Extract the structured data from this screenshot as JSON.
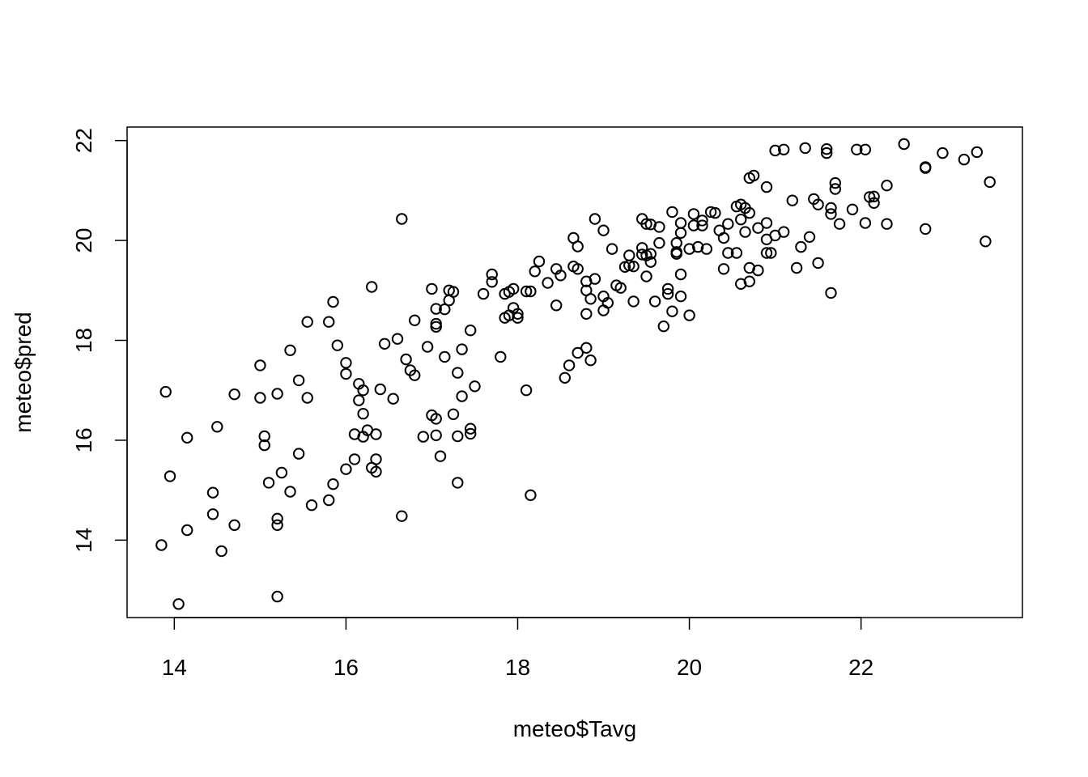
{
  "chart_data": {
    "type": "scatter",
    "title": "",
    "xlabel": "meteo$Tavg",
    "ylabel": "meteo$pred",
    "xlim": [
      13.45,
      23.88
    ],
    "ylim": [
      12.45,
      22.27
    ],
    "xticks": [
      14,
      16,
      18,
      20,
      22
    ],
    "yticks": [
      14,
      16,
      18,
      20,
      22
    ],
    "xtick_labels": [
      "14",
      "16",
      "18",
      "20",
      "22"
    ],
    "ytick_labels": [
      "14",
      "16",
      "18",
      "20",
      "22"
    ],
    "grid": false,
    "marker": "open-circle",
    "point_color": "#000000",
    "points": [
      [
        13.85,
        13.9
      ],
      [
        13.9,
        16.97
      ],
      [
        13.95,
        15.28
      ],
      [
        14.05,
        12.72
      ],
      [
        14.15,
        14.2
      ],
      [
        14.15,
        16.05
      ],
      [
        14.45,
        14.52
      ],
      [
        14.45,
        14.95
      ],
      [
        14.5,
        16.27
      ],
      [
        14.55,
        13.78
      ],
      [
        14.7,
        14.3
      ],
      [
        14.7,
        16.92
      ],
      [
        15.0,
        16.85
      ],
      [
        15.0,
        17.5
      ],
      [
        15.05,
        16.08
      ],
      [
        15.05,
        15.9
      ],
      [
        15.1,
        15.15
      ],
      [
        15.2,
        12.87
      ],
      [
        15.2,
        14.3
      ],
      [
        15.2,
        14.43
      ],
      [
        15.2,
        16.93
      ],
      [
        15.25,
        15.35
      ],
      [
        15.35,
        14.97
      ],
      [
        15.35,
        17.8
      ],
      [
        15.45,
        17.2
      ],
      [
        15.45,
        15.73
      ],
      [
        15.55,
        16.85
      ],
      [
        15.55,
        18.37
      ],
      [
        15.6,
        14.7
      ],
      [
        15.8,
        14.8
      ],
      [
        15.8,
        18.37
      ],
      [
        15.85,
        15.12
      ],
      [
        15.85,
        18.77
      ],
      [
        15.9,
        17.9
      ],
      [
        16.0,
        15.42
      ],
      [
        16.0,
        17.33
      ],
      [
        16.0,
        17.55
      ],
      [
        16.1,
        15.62
      ],
      [
        16.1,
        16.12
      ],
      [
        16.15,
        16.8
      ],
      [
        16.15,
        17.13
      ],
      [
        16.2,
        16.07
      ],
      [
        16.2,
        16.53
      ],
      [
        16.2,
        17.0
      ],
      [
        16.25,
        16.2
      ],
      [
        16.3,
        15.45
      ],
      [
        16.3,
        19.07
      ],
      [
        16.35,
        15.62
      ],
      [
        16.35,
        15.37
      ],
      [
        16.35,
        16.12
      ],
      [
        16.4,
        17.02
      ],
      [
        16.45,
        17.93
      ],
      [
        16.55,
        16.83
      ],
      [
        16.6,
        18.03
      ],
      [
        16.65,
        20.43
      ],
      [
        16.65,
        14.48
      ],
      [
        16.7,
        17.62
      ],
      [
        16.75,
        17.4
      ],
      [
        16.8,
        17.3
      ],
      [
        16.8,
        18.4
      ],
      [
        16.9,
        16.07
      ],
      [
        16.95,
        17.87
      ],
      [
        17.0,
        16.5
      ],
      [
        17.0,
        19.03
      ],
      [
        17.05,
        16.1
      ],
      [
        17.05,
        16.43
      ],
      [
        17.05,
        18.27
      ],
      [
        17.05,
        18.33
      ],
      [
        17.05,
        18.63
      ],
      [
        17.1,
        15.68
      ],
      [
        17.15,
        17.67
      ],
      [
        17.15,
        18.62
      ],
      [
        17.2,
        18.8
      ],
      [
        17.2,
        19.0
      ],
      [
        17.25,
        18.97
      ],
      [
        17.25,
        16.52
      ],
      [
        17.3,
        15.15
      ],
      [
        17.3,
        16.08
      ],
      [
        17.3,
        17.35
      ],
      [
        17.35,
        16.88
      ],
      [
        17.35,
        17.82
      ],
      [
        17.45,
        16.13
      ],
      [
        17.45,
        16.23
      ],
      [
        17.45,
        18.2
      ],
      [
        17.5,
        17.08
      ],
      [
        17.6,
        18.93
      ],
      [
        17.7,
        19.17
      ],
      [
        17.7,
        19.32
      ],
      [
        17.8,
        17.67
      ],
      [
        17.85,
        18.45
      ],
      [
        17.85,
        18.93
      ],
      [
        17.9,
        18.5
      ],
      [
        17.9,
        18.97
      ],
      [
        17.95,
        19.03
      ],
      [
        17.95,
        18.65
      ],
      [
        18.0,
        18.53
      ],
      [
        18.0,
        18.45
      ],
      [
        18.1,
        17.0
      ],
      [
        18.1,
        18.98
      ],
      [
        18.15,
        18.98
      ],
      [
        18.15,
        14.9
      ],
      [
        18.2,
        19.38
      ],
      [
        18.25,
        19.58
      ],
      [
        18.35,
        19.15
      ],
      [
        18.45,
        18.7
      ],
      [
        18.45,
        19.43
      ],
      [
        18.5,
        19.3
      ],
      [
        18.55,
        17.25
      ],
      [
        18.6,
        17.5
      ],
      [
        18.65,
        20.05
      ],
      [
        18.65,
        19.48
      ],
      [
        18.7,
        19.88
      ],
      [
        18.7,
        19.43
      ],
      [
        18.7,
        17.75
      ],
      [
        18.8,
        17.85
      ],
      [
        18.8,
        18.53
      ],
      [
        18.8,
        19.0
      ],
      [
        18.8,
        19.18
      ],
      [
        18.85,
        18.83
      ],
      [
        18.85,
        17.6
      ],
      [
        18.9,
        20.43
      ],
      [
        18.9,
        19.23
      ],
      [
        19.0,
        20.2
      ],
      [
        19.0,
        18.88
      ],
      [
        19.0,
        18.6
      ],
      [
        19.05,
        18.75
      ],
      [
        19.1,
        19.83
      ],
      [
        19.15,
        19.1
      ],
      [
        19.2,
        19.05
      ],
      [
        19.25,
        19.47
      ],
      [
        19.3,
        19.5
      ],
      [
        19.3,
        19.7
      ],
      [
        19.35,
        18.78
      ],
      [
        19.35,
        19.48
      ],
      [
        19.45,
        19.85
      ],
      [
        19.45,
        19.72
      ],
      [
        19.45,
        20.43
      ],
      [
        19.5,
        20.33
      ],
      [
        19.5,
        19.28
      ],
      [
        19.5,
        19.7
      ],
      [
        19.55,
        19.73
      ],
      [
        19.55,
        19.57
      ],
      [
        19.55,
        20.32
      ],
      [
        19.6,
        18.78
      ],
      [
        19.65,
        20.27
      ],
      [
        19.65,
        19.95
      ],
      [
        19.7,
        18.28
      ],
      [
        19.75,
        18.93
      ],
      [
        19.75,
        19.03
      ],
      [
        19.8,
        18.58
      ],
      [
        19.8,
        20.57
      ],
      [
        19.85,
        19.73
      ],
      [
        19.85,
        19.95
      ],
      [
        19.85,
        19.77
      ],
      [
        19.9,
        19.32
      ],
      [
        19.9,
        20.15
      ],
      [
        19.9,
        20.35
      ],
      [
        19.9,
        18.88
      ],
      [
        20.0,
        19.83
      ],
      [
        20.0,
        18.5
      ],
      [
        20.05,
        20.3
      ],
      [
        20.05,
        20.53
      ],
      [
        20.1,
        19.87
      ],
      [
        20.15,
        20.4
      ],
      [
        20.15,
        20.3
      ],
      [
        20.2,
        19.83
      ],
      [
        20.25,
        20.57
      ],
      [
        20.3,
        20.55
      ],
      [
        20.35,
        20.2
      ],
      [
        20.4,
        20.05
      ],
      [
        20.4,
        19.43
      ],
      [
        20.45,
        20.33
      ],
      [
        20.45,
        19.75
      ],
      [
        20.55,
        20.68
      ],
      [
        20.55,
        19.75
      ],
      [
        20.6,
        20.42
      ],
      [
        20.6,
        19.13
      ],
      [
        20.6,
        20.72
      ],
      [
        20.65,
        20.17
      ],
      [
        20.65,
        20.65
      ],
      [
        20.7,
        21.25
      ],
      [
        20.7,
        20.55
      ],
      [
        20.7,
        19.45
      ],
      [
        20.7,
        19.18
      ],
      [
        20.75,
        21.3
      ],
      [
        20.8,
        20.25
      ],
      [
        20.8,
        19.4
      ],
      [
        20.9,
        21.07
      ],
      [
        20.9,
        20.35
      ],
      [
        20.9,
        20.02
      ],
      [
        20.9,
        19.75
      ],
      [
        20.95,
        19.75
      ],
      [
        21.0,
        20.1
      ],
      [
        21.0,
        21.8
      ],
      [
        21.1,
        21.82
      ],
      [
        21.1,
        20.17
      ],
      [
        21.2,
        20.8
      ],
      [
        21.25,
        19.45
      ],
      [
        21.3,
        19.87
      ],
      [
        21.35,
        21.85
      ],
      [
        21.4,
        20.07
      ],
      [
        21.45,
        20.83
      ],
      [
        21.5,
        20.72
      ],
      [
        21.5,
        19.55
      ],
      [
        21.6,
        21.83
      ],
      [
        21.6,
        21.75
      ],
      [
        21.65,
        20.65
      ],
      [
        21.65,
        20.53
      ],
      [
        21.65,
        18.95
      ],
      [
        21.7,
        21.15
      ],
      [
        21.7,
        21.03
      ],
      [
        21.75,
        20.33
      ],
      [
        21.9,
        20.62
      ],
      [
        21.95,
        21.82
      ],
      [
        22.05,
        21.82
      ],
      [
        22.05,
        20.35
      ],
      [
        22.1,
        20.87
      ],
      [
        22.15,
        20.88
      ],
      [
        22.15,
        20.75
      ],
      [
        22.3,
        21.1
      ],
      [
        22.3,
        20.33
      ],
      [
        22.5,
        21.93
      ],
      [
        22.75,
        21.45
      ],
      [
        22.75,
        21.47
      ],
      [
        22.75,
        20.23
      ],
      [
        22.95,
        21.75
      ],
      [
        23.2,
        21.62
      ],
      [
        23.35,
        21.77
      ],
      [
        23.45,
        19.98
      ],
      [
        23.5,
        21.17
      ]
    ]
  }
}
